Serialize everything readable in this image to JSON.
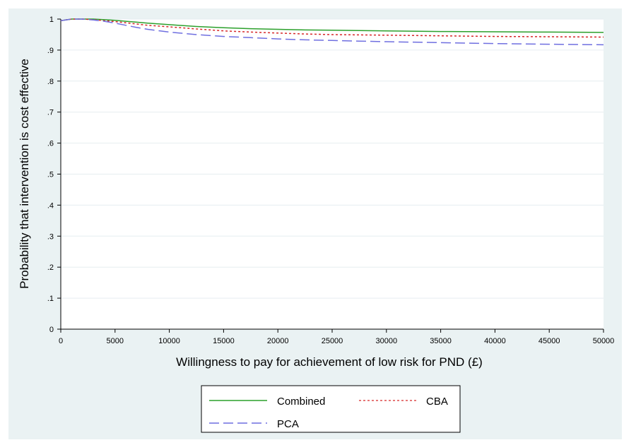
{
  "chart_data": {
    "type": "line",
    "title": "",
    "xlabel": "Willingness to pay for achievement of low risk for PND (£)",
    "ylabel": "Probability that intervention is cost  effective",
    "xlim": [
      0,
      50000
    ],
    "ylim": [
      0,
      1
    ],
    "x_ticks": [
      "0",
      "5000",
      "10000",
      "15000",
      "20000",
      "25000",
      "30000",
      "35000",
      "40000",
      "45000",
      "50000"
    ],
    "y_ticks": [
      "0",
      ".1",
      ".2",
      ".3",
      ".4",
      ".5",
      ".6",
      ".7",
      ".8",
      ".9",
      "1"
    ],
    "grid": true,
    "legend_position": "bottom",
    "x": [
      0,
      1000,
      2000,
      3000,
      4000,
      5000,
      6000,
      7000,
      8000,
      10000,
      12500,
      15000,
      17500,
      20000,
      22500,
      25000,
      27500,
      30000,
      35000,
      40000,
      45000,
      50000
    ],
    "series": [
      {
        "name": "Combined",
        "color": "#2ca02c",
        "dash": "solid",
        "values": [
          0.995,
          1.0,
          1.0,
          1.0,
          0.998,
          0.996,
          0.993,
          0.99,
          0.987,
          0.982,
          0.976,
          0.972,
          0.969,
          0.967,
          0.965,
          0.964,
          0.963,
          0.962,
          0.96,
          0.959,
          0.958,
          0.957
        ]
      },
      {
        "name": "CBA",
        "color": "#d62728",
        "dash": "short-dash",
        "values": [
          0.995,
          1.0,
          1.0,
          0.998,
          0.995,
          0.992,
          0.988,
          0.984,
          0.98,
          0.975,
          0.968,
          0.962,
          0.958,
          0.955,
          0.952,
          0.95,
          0.949,
          0.948,
          0.946,
          0.944,
          0.943,
          0.942
        ]
      },
      {
        "name": "PCA",
        "color": "#6f6fe0",
        "dash": "long-dash",
        "values": [
          0.995,
          1.0,
          1.0,
          0.997,
          0.993,
          0.987,
          0.98,
          0.973,
          0.967,
          0.958,
          0.95,
          0.944,
          0.94,
          0.936,
          0.933,
          0.931,
          0.929,
          0.927,
          0.924,
          0.921,
          0.919,
          0.917
        ]
      }
    ]
  },
  "colors": {
    "plot_background": "#ffffff",
    "outer_background": "#eaf2f3",
    "gridline": "#e6eef0"
  }
}
